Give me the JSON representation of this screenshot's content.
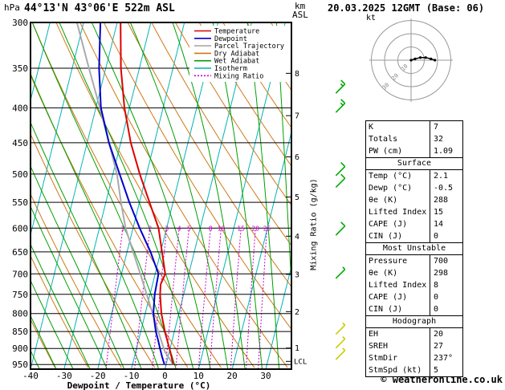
{
  "header": {
    "station": "44°13'N 43°06'E 522m ASL",
    "datetime": "20.03.2025 12GMT (Base: 06)",
    "pressure_unit": "hPa",
    "km_label": "km",
    "asl_label": "ASL"
  },
  "legend": [
    {
      "label": "Temperature",
      "color": "#dd0000",
      "dash": ""
    },
    {
      "label": "Dewpoint",
      "color": "#0000cc",
      "dash": ""
    },
    {
      "label": "Parcel Trajectory",
      "color": "#aaaaaa",
      "dash": ""
    },
    {
      "label": "Dry Adiabat",
      "color": "#d07818",
      "dash": ""
    },
    {
      "label": "Wet Adiabat",
      "color": "#00a000",
      "dash": ""
    },
    {
      "label": "Isotherm",
      "color": "#00b4b4",
      "dash": ""
    },
    {
      "label": "Mixing Ratio",
      "color": "#cc00cc",
      "dash": "2 2"
    }
  ],
  "chart_data": {
    "type": "line",
    "chart_kind": "skew-t-log-p-sounding",
    "x_axis_label": "Dewpoint / Temperature (°C)",
    "temp_ticks_C": [
      -40,
      -30,
      -20,
      -10,
      0,
      10,
      20,
      30
    ],
    "pressure_ticks_hPa": [
      300,
      350,
      400,
      450,
      500,
      550,
      600,
      650,
      700,
      750,
      800,
      850,
      900,
      950
    ],
    "pressure_range_hPa": [
      300,
      965
    ],
    "km_asl_ticks": [
      8,
      7,
      6,
      5,
      4,
      3,
      2,
      1
    ],
    "lcl_label": "LCL",
    "lcl_pressure_hPa": 940,
    "mixing_ratio_axis_label": "Mixing Ratio (g/kg)",
    "series": [
      {
        "name": "Temperature",
        "color": "#dd0000",
        "points_p_T": [
          [
            950,
            2.1
          ],
          [
            925,
            1.0
          ],
          [
            900,
            -0.2
          ],
          [
            875,
            -1.5
          ],
          [
            850,
            -2.8
          ],
          [
            800,
            -5.2
          ],
          [
            750,
            -7.0
          ],
          [
            725,
            -7.6
          ],
          [
            700,
            -7.0
          ],
          [
            650,
            -9.6
          ],
          [
            600,
            -12.4
          ],
          [
            550,
            -17.0
          ],
          [
            500,
            -22.0
          ],
          [
            450,
            -27.0
          ],
          [
            400,
            -31.5
          ],
          [
            350,
            -35.5
          ],
          [
            300,
            -39.0
          ]
        ]
      },
      {
        "name": "Dewpoint",
        "color": "#0000cc",
        "points_p_T": [
          [
            950,
            -0.5
          ],
          [
            925,
            -1.8
          ],
          [
            900,
            -3.0
          ],
          [
            875,
            -4.2
          ],
          [
            850,
            -5.5
          ],
          [
            800,
            -7.6
          ],
          [
            750,
            -8.6
          ],
          [
            700,
            -9.0
          ],
          [
            650,
            -13.0
          ],
          [
            600,
            -18.0
          ],
          [
            550,
            -23.0
          ],
          [
            500,
            -28.0
          ],
          [
            450,
            -33.5
          ],
          [
            400,
            -38.5
          ],
          [
            350,
            -42.0
          ],
          [
            300,
            -45.0
          ]
        ]
      },
      {
        "name": "Parcel Trajectory",
        "color": "#aaaaaa",
        "points_p_T": [
          [
            950,
            2.1
          ],
          [
            910,
            -1.3
          ],
          [
            850,
            -4.8
          ],
          [
            800,
            -7.8
          ],
          [
            750,
            -11.0
          ],
          [
            700,
            -14.4
          ],
          [
            650,
            -18.2
          ],
          [
            600,
            -22.2
          ],
          [
            550,
            -25.5
          ],
          [
            500,
            -28.8
          ],
          [
            450,
            -33.5
          ],
          [
            400,
            -38.8
          ],
          [
            350,
            -45.0
          ],
          [
            300,
            -52.0
          ]
        ]
      }
    ],
    "background": {
      "isotherm_color": "#00b4b4",
      "isotherm_step_C": 10,
      "dry_adiabat_color": "#d07818",
      "dry_adiabat_theta_range_C": [
        -40,
        130,
        10
      ],
      "wet_adiabat_color": "#00a000",
      "wet_adiabat_thetaw_range_C": [
        -40,
        40,
        5
      ],
      "mixing_ratio_color": "#cc00cc",
      "mixing_ratio_gkg": [
        1,
        2,
        3,
        4,
        5,
        8,
        10,
        15,
        20,
        25
      ]
    },
    "wind_barbs": [
      {
        "p": 375,
        "spd_kt": 15,
        "color": "#00aa00"
      },
      {
        "p": 400,
        "spd_kt": 15,
        "color": "#00aa00"
      },
      {
        "p": 495,
        "spd_kt": 10,
        "color": "#00aa00"
      },
      {
        "p": 515,
        "spd_kt": 10,
        "color": "#00aa00"
      },
      {
        "p": 605,
        "spd_kt": 10,
        "color": "#00aa00"
      },
      {
        "p": 700,
        "spd_kt": 5,
        "color": "#00aa00"
      },
      {
        "p": 845,
        "spd_kt": 5,
        "color": "#cccc00"
      },
      {
        "p": 885,
        "spd_kt": 5,
        "color": "#cccc00"
      },
      {
        "p": 920,
        "spd_kt": 5,
        "color": "#cccc00"
      }
    ],
    "hodograph": {
      "unit": "kt",
      "rings_kt": [
        10,
        20,
        30
      ],
      "trace_uv_kt": [
        [
          0,
          0
        ],
        [
          3,
          1
        ],
        [
          7,
          2
        ],
        [
          11,
          2
        ],
        [
          15,
          1
        ],
        [
          18,
          0
        ]
      ]
    }
  },
  "table": {
    "sections": [
      {
        "header": "",
        "rows": [
          [
            "K",
            "7"
          ],
          [
            "Totals Totals",
            "32"
          ],
          [
            "PW (cm)",
            "1.09"
          ]
        ]
      },
      {
        "header": "Surface",
        "rows": [
          [
            "Temp (°C)",
            "2.1"
          ],
          [
            "Dewp (°C)",
            "-0.5"
          ],
          [
            "θe (K)",
            "288"
          ],
          [
            "Lifted Index",
            "15"
          ],
          [
            "CAPE (J)",
            "14"
          ],
          [
            "CIN (J)",
            "0"
          ]
        ]
      },
      {
        "header": "Most Unstable",
        "rows": [
          [
            "Pressure (mb)",
            "700"
          ],
          [
            "θe (K)",
            "298"
          ],
          [
            "Lifted Index",
            "8"
          ],
          [
            "CAPE (J)",
            "0"
          ],
          [
            "CIN (J)",
            "0"
          ]
        ]
      },
      {
        "header": "Hodograph",
        "rows": [
          [
            "EH",
            "20"
          ],
          [
            "SREH",
            "27"
          ],
          [
            "StmDir",
            "237°"
          ],
          [
            "StmSpd (kt)",
            "5"
          ]
        ]
      }
    ]
  },
  "footer": {
    "copyright": "© weatheronline.co.uk"
  }
}
